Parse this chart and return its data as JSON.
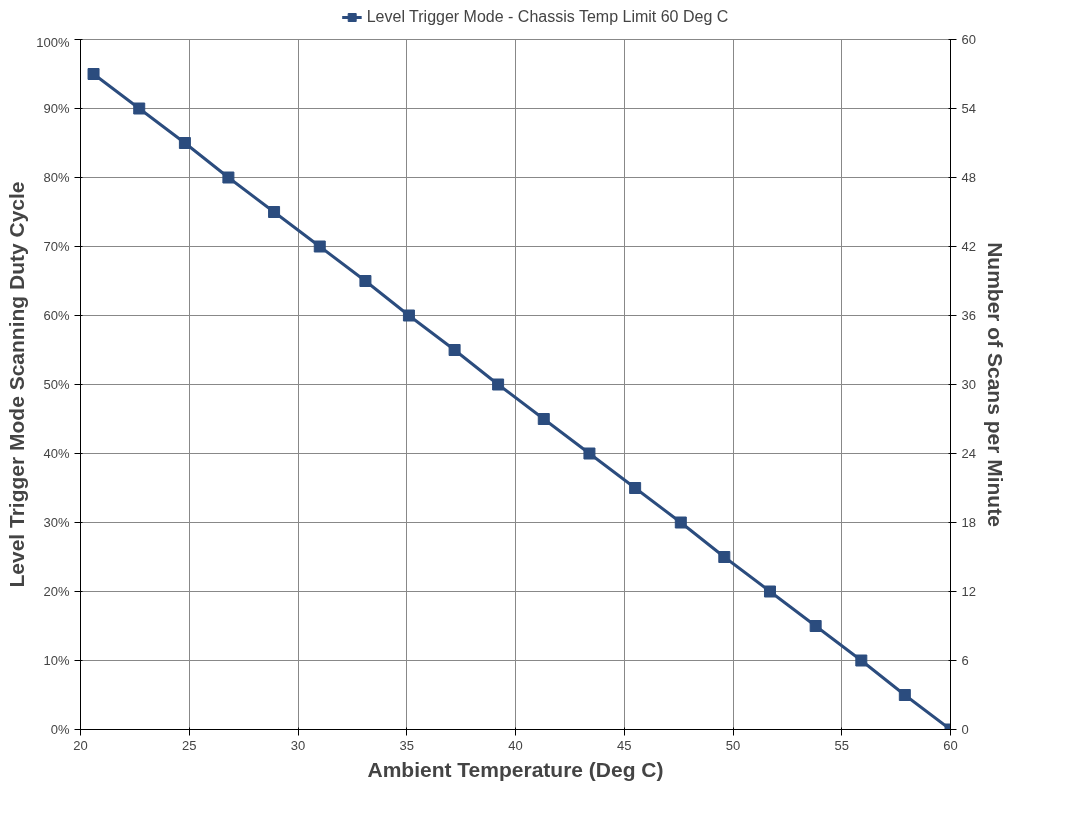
{
  "chart_data": {
    "type": "line",
    "xlabel": "Ambient Temperature (Deg C)",
    "ylabel": "Level Trigger Mode Scanning Duty Cycle",
    "y2label": "Number of Scans per Minute",
    "x": [
      20.6,
      22.7,
      24.8,
      26.8,
      28.9,
      31.0,
      33.1,
      35.1,
      37.2,
      39.2,
      41.3,
      43.4,
      45.5,
      47.6,
      49.6,
      51.7,
      53.8,
      55.9,
      57.9,
      60.0
    ],
    "series": [
      {
        "name": "Level Trigger Mode - Chassis Temp Limit 60 Deg C",
        "color": "#2b4c7e",
        "values": [
          95,
          90,
          85,
          80,
          75,
          70,
          65,
          60,
          55,
          50,
          45,
          40,
          35,
          30,
          25,
          20,
          15,
          10,
          5,
          0
        ]
      }
    ],
    "xlim": [
      20,
      60
    ],
    "xticks": [
      20,
      25,
      30,
      35,
      40,
      45,
      50,
      55,
      60
    ],
    "ylim": [
      0,
      100
    ],
    "yticks": [
      {
        "value": 0,
        "label": "0%"
      },
      {
        "value": 10,
        "label": "10%"
      },
      {
        "value": 20,
        "label": "20%"
      },
      {
        "value": 30,
        "label": "30%"
      },
      {
        "value": 40,
        "label": "40%"
      },
      {
        "value": 50,
        "label": "50%"
      },
      {
        "value": 60,
        "label": "60%"
      },
      {
        "value": 70,
        "label": "70%"
      },
      {
        "value": 80,
        "label": "80%"
      },
      {
        "value": 90,
        "label": "90%"
      },
      {
        "value": 100,
        "label": "100%"
      }
    ],
    "y2lim": [
      0,
      60
    ],
    "y2ticks": [
      0,
      6,
      12,
      18,
      24,
      30,
      36,
      42,
      48,
      54,
      60
    ],
    "grid": true,
    "legend": "top",
    "marker": "square",
    "line_style": "solid"
  }
}
